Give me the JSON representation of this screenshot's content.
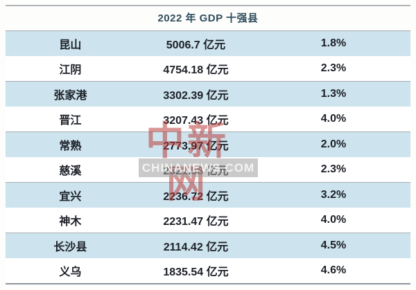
{
  "title": "2022 年 GDP 十强县",
  "watermark": {
    "cn": "中新网",
    "en": "CHINANEWS.COM"
  },
  "colors": {
    "row_alt_blue": "#cde3ed",
    "title_text": "#2e4d5c",
    "body_text": "#1b1f26",
    "border_gray": "#a6acb1",
    "watermark_red": "#ba3e3a",
    "watermark_bar_gray": "#9e9e9e"
  },
  "chart_data": {
    "type": "table",
    "title": "2022 年 GDP 十强县",
    "unit": "亿元",
    "rows": [
      {
        "name": "昆山",
        "gdp": "5006.7 亿元",
        "growth": "1.8%"
      },
      {
        "name": "江阴",
        "gdp": "4754.18 亿元",
        "growth": "2.3%"
      },
      {
        "name": "张家港",
        "gdp": "3302.39 亿元",
        "growth": "1.3%"
      },
      {
        "name": "晋江",
        "gdp": "3207.43 亿元",
        "growth": "4.0%"
      },
      {
        "name": "常熟",
        "gdp": "2773.97 亿元",
        "growth": "2.0%"
      },
      {
        "name": "慈溪",
        "gdp": "2521.58 亿元",
        "growth": "2.3%"
      },
      {
        "name": "宜兴",
        "gdp": "2236.72 亿元",
        "growth": "3.2%"
      },
      {
        "name": "神木",
        "gdp": "2231.47 亿元",
        "growth": "4.0%"
      },
      {
        "name": "长沙县",
        "gdp": "2114.42 亿元",
        "growth": "4.5%"
      },
      {
        "name": "义乌",
        "gdp": "1835.54 亿元",
        "growth": "4.6%"
      }
    ],
    "gdp_values_yi_yuan": [
      5006.7,
      4754.18,
      3302.39,
      3207.43,
      2773.97,
      2521.58,
      2236.72,
      2231.47,
      2114.42,
      1835.54
    ],
    "growth_pct": [
      1.8,
      2.3,
      1.3,
      4.0,
      2.0,
      2.3,
      3.2,
      4.0,
      4.5,
      4.6
    ]
  }
}
